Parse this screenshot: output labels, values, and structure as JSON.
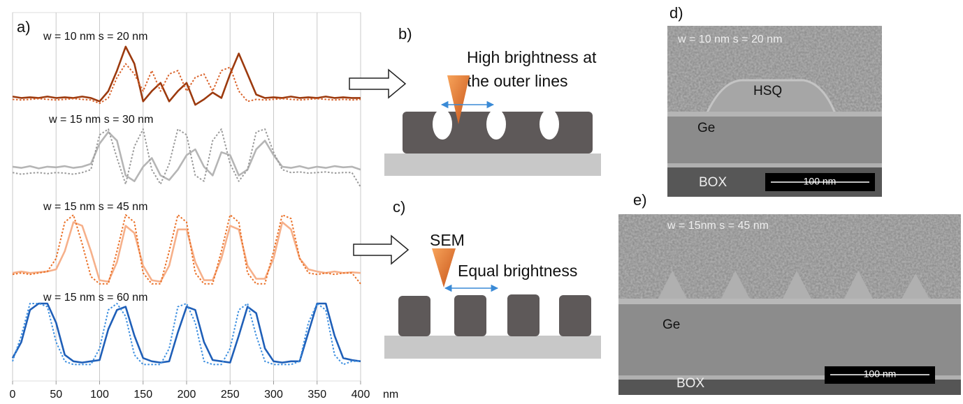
{
  "chart_data": {
    "type": "line",
    "label": "a)",
    "x": [
      0,
      10,
      20,
      30,
      40,
      50,
      60,
      70,
      80,
      90,
      100,
      110,
      120,
      130,
      140,
      150,
      160,
      170,
      180,
      190,
      200,
      210,
      220,
      230,
      240,
      250,
      260,
      270,
      280,
      290,
      300,
      310,
      320,
      330,
      340,
      350,
      360,
      370,
      380,
      390,
      400
    ],
    "xlim": [
      0,
      400
    ],
    "xticks": [
      0,
      50,
      100,
      150,
      200,
      250,
      300,
      350,
      400
    ],
    "x_unit": "nm",
    "grid": true,
    "groups": [
      {
        "title": "w = 10 nm  s = 20 nm",
        "ylim": [
          0,
          1
        ],
        "series": [
          {
            "color": "#9c3a0e",
            "style": "solid",
            "values": [
              0.22,
              0.2,
              0.21,
              0.2,
              0.22,
              0.2,
              0.21,
              0.2,
              0.22,
              0.2,
              0.15,
              0.3,
              0.6,
              0.95,
              0.7,
              0.15,
              0.3,
              0.42,
              0.15,
              0.3,
              0.42,
              0.1,
              0.18,
              0.28,
              0.2,
              0.55,
              0.85,
              0.55,
              0.25,
              0.2,
              0.21,
              0.2,
              0.22,
              0.2,
              0.21,
              0.2,
              0.22,
              0.2,
              0.21,
              0.2,
              0.2
            ]
          },
          {
            "color": "#d9622a",
            "style": "dotted",
            "values": [
              0.18,
              0.17,
              0.18,
              0.19,
              0.18,
              0.17,
              0.18,
              0.19,
              0.18,
              0.17,
              0.12,
              0.2,
              0.5,
              0.7,
              0.55,
              0.3,
              0.6,
              0.3,
              0.55,
              0.6,
              0.3,
              0.5,
              0.55,
              0.3,
              0.6,
              0.65,
              0.3,
              0.15,
              0.18,
              0.17,
              0.18,
              0.19,
              0.18,
              0.17,
              0.18,
              0.19,
              0.18,
              0.17,
              0.18,
              0.17,
              0.18
            ]
          }
        ]
      },
      {
        "title": "w = 15 nm  s = 30 nm",
        "ylim": [
          0,
          1
        ],
        "series": [
          {
            "color": "#b5b5b5",
            "style": "solid",
            "values": [
              0.35,
              0.33,
              0.36,
              0.32,
              0.35,
              0.34,
              0.36,
              0.33,
              0.35,
              0.4,
              0.75,
              0.95,
              0.8,
              0.2,
              0.1,
              0.35,
              0.5,
              0.2,
              0.12,
              0.3,
              0.55,
              0.65,
              0.35,
              0.2,
              0.6,
              0.55,
              0.2,
              0.3,
              0.65,
              0.8,
              0.55,
              0.35,
              0.33,
              0.36,
              0.32,
              0.35,
              0.33,
              0.36,
              0.34,
              0.35,
              0.3
            ]
          },
          {
            "color": "#9a9a9a",
            "style": "dotted",
            "values": [
              0.25,
              0.22,
              0.24,
              0.25,
              0.23,
              0.25,
              0.24,
              0.22,
              0.25,
              0.3,
              0.9,
              1.0,
              0.5,
              0.05,
              0.7,
              1.0,
              0.3,
              0.05,
              0.4,
              1.0,
              0.9,
              0.2,
              0.1,
              0.8,
              1.0,
              0.4,
              0.1,
              0.3,
              0.95,
              1.0,
              0.6,
              0.3,
              0.25,
              0.26,
              0.24,
              0.25,
              0.26,
              0.24,
              0.25,
              0.25,
              0
            ]
          }
        ]
      },
      {
        "title": "w = 15 nm  s = 45 nm",
        "ylim": [
          0,
          1
        ],
        "series": [
          {
            "color": "#f6b08a",
            "style": "solid",
            "values": [
              0.2,
              0.22,
              0.2,
              0.21,
              0.22,
              0.25,
              0.5,
              0.9,
              0.85,
              0.5,
              0.1,
              0.08,
              0.35,
              0.85,
              0.75,
              0.3,
              0.1,
              0.08,
              0.3,
              0.8,
              0.8,
              0.35,
              0.1,
              0.1,
              0.4,
              0.85,
              0.8,
              0.3,
              0.12,
              0.12,
              0.4,
              0.9,
              0.8,
              0.4,
              0.25,
              0.22,
              0.2,
              0.22,
              0.2,
              0.21,
              0.2
            ]
          },
          {
            "color": "#ea6f25",
            "style": "dotted",
            "values": [
              0.18,
              0.2,
              0.18,
              0.2,
              0.22,
              0.4,
              0.9,
              1.0,
              0.6,
              0.15,
              0.05,
              0.05,
              0.5,
              1.0,
              0.9,
              0.2,
              0.05,
              0.05,
              0.5,
              1.0,
              0.9,
              0.2,
              0.05,
              0.05,
              0.5,
              1.0,
              0.9,
              0.2,
              0.05,
              0.05,
              0.5,
              1.0,
              0.95,
              0.4,
              0.2,
              0.18,
              0.2,
              0.18,
              0.2,
              0.2,
              0.05
            ]
          }
        ]
      },
      {
        "title": "w = 15 nm  s = 60 nm",
        "ylim": [
          0,
          1
        ],
        "series": [
          {
            "color": "#1f5fb8",
            "style": "solid",
            "values": [
              0.15,
              0.4,
              0.9,
              1.0,
              1.0,
              0.7,
              0.2,
              0.1,
              0.08,
              0.1,
              0.12,
              0.6,
              0.9,
              0.95,
              0.5,
              0.15,
              0.1,
              0.08,
              0.1,
              0.55,
              0.95,
              0.9,
              0.4,
              0.12,
              0.1,
              0.08,
              0.5,
              0.95,
              0.85,
              0.3,
              0.1,
              0.08,
              0.1,
              0.1,
              0.55,
              1.0,
              1.0,
              0.5,
              0.15,
              0.12,
              0.1
            ]
          },
          {
            "color": "#3d8fe0",
            "style": "dotted",
            "values": [
              0.1,
              0.5,
              1.0,
              1.0,
              0.95,
              0.4,
              0.1,
              0.05,
              0.05,
              0.05,
              0.3,
              0.9,
              1.0,
              0.8,
              0.2,
              0.05,
              0.05,
              0.05,
              0.3,
              0.95,
              1.0,
              0.7,
              0.1,
              0.05,
              0.05,
              0.3,
              0.9,
              1.0,
              0.5,
              0.1,
              0.05,
              0.05,
              0.05,
              0.1,
              0.7,
              1.0,
              0.9,
              0.2,
              0.05,
              0.1,
              0.1
            ]
          }
        ]
      }
    ]
  },
  "panel_b": {
    "label": "b)",
    "text": [
      "High brightness at",
      "the outer lines"
    ]
  },
  "panel_c": {
    "label": "c)",
    "tip": "SEM",
    "text": "Equal brightness"
  },
  "panel_d": {
    "label": "d)",
    "caption": "w = 10 nm  s = 20 nm",
    "layers": [
      "HSQ",
      "Ge",
      "BOX"
    ],
    "scale_bar": "100 nm"
  },
  "panel_e": {
    "label": "e)",
    "caption": "w = 15nm  s = 45 nm",
    "layers": [
      "Ge",
      "BOX"
    ],
    "scale_bar": "100 nm"
  }
}
